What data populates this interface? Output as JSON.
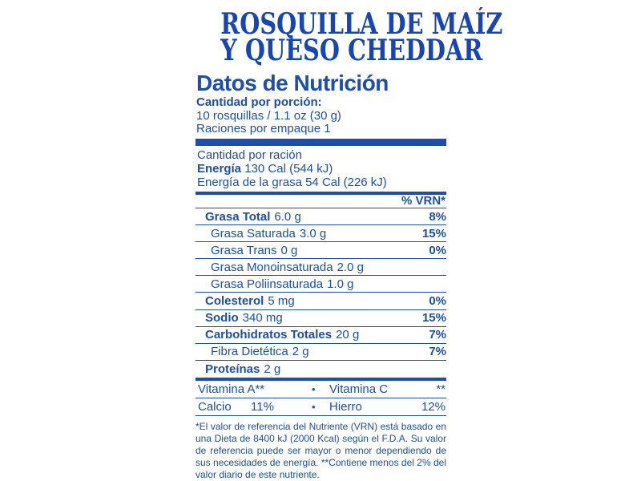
{
  "colors": {
    "blue": "#1E4FA8",
    "title_blue": "#1746B2"
  },
  "title": {
    "line1": "ROSQUILLA DE MAÍZ",
    "line2": "Y QUESO CHEDDAR"
  },
  "label": {
    "heading": "Datos de Nutrición",
    "serving": {
      "line1": "Cantidad por porción:",
      "line2": "10 rosquillas / 1.1 oz (30 g)",
      "line3": "Raciones por empaque 1"
    },
    "energy": {
      "header": "Cantidad por ración",
      "calories_label": "Energía",
      "calories_value": " 130 Cal (544 kJ)",
      "fat_line": "Energía de la grasa 54 Cal (226 kJ)"
    },
    "vrn_header": "% VRN*",
    "nutrients": [
      {
        "name": "Grasa Total",
        "amount": "6.0 g",
        "pct": "8%"
      },
      {
        "name": "Grasa Saturada",
        "amount": "3.0 g",
        "pct": "15%"
      },
      {
        "name": "Grasa Trans",
        "amount": "0 g",
        "pct": "0%"
      },
      {
        "name": "Grasa Monoinsaturada",
        "amount": "2.0 g",
        "pct": ""
      },
      {
        "name": "Grasa Poliinsaturada",
        "amount": "1.0 g",
        "pct": ""
      },
      {
        "name": "Colesterol",
        "amount": "5 mg",
        "pct": "0%"
      },
      {
        "name": "Sodio",
        "amount": "340 mg",
        "pct": "15%"
      },
      {
        "name": "Carbohidratos Totales",
        "amount": "20 g",
        "pct": "7%"
      },
      {
        "name": "Fibra Dietética",
        "amount": "2 g",
        "pct": "7%"
      },
      {
        "name": "Proteínas",
        "amount": "2 g",
        "pct": ""
      }
    ],
    "vitamins": {
      "bullet": "•",
      "rows": [
        {
          "left_label": "Vitamina A",
          "left_value": "**",
          "right_label": "Vitamina C",
          "right_value": "**"
        },
        {
          "left_label": "Calcio",
          "left_value": "11%",
          "right_label": "Hierro",
          "right_value": "12%"
        }
      ]
    },
    "footnote": "*El valor de referencia del Nutriente (VRN) está basado en una Dieta de 8400 kJ (2000 Kcal) según el F.D.A. Su valor de referencia puede ser mayor o menor dependiendo de sus necesidades de energía. **Contiene menos del 2% del valor diario de este nutriente."
  }
}
